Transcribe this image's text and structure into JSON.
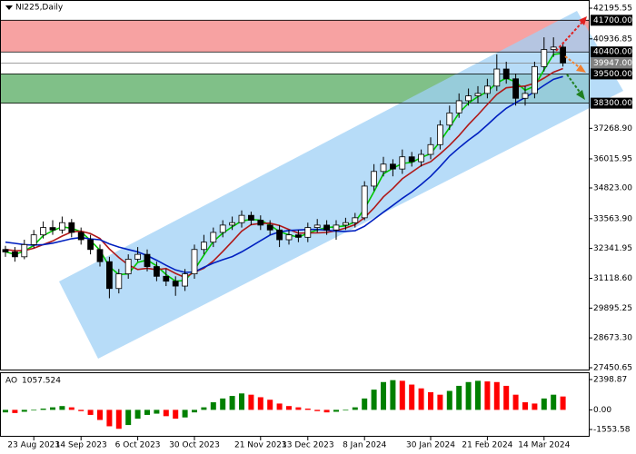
{
  "chart_data": {
    "type": "candlestick",
    "title": "NI225,Daily",
    "ohlc": [
      [
        32300,
        32450,
        32000,
        32200
      ],
      [
        32200,
        32400,
        31800,
        32000
      ],
      [
        32000,
        32700,
        31900,
        32500
      ],
      [
        32500,
        33100,
        32350,
        32900
      ],
      [
        32900,
        33450,
        32750,
        33200
      ],
      [
        33200,
        33500,
        32900,
        33100
      ],
      [
        33100,
        33650,
        32950,
        33400
      ],
      [
        33400,
        33550,
        32800,
        33000
      ],
      [
        33000,
        33200,
        32500,
        32700
      ],
      [
        32700,
        32900,
        32100,
        32300
      ],
      [
        32300,
        32500,
        31600,
        31800
      ],
      [
        31800,
        32000,
        30300,
        30700
      ],
      [
        30700,
        31500,
        30500,
        31300
      ],
      [
        31300,
        32100,
        31100,
        31900
      ],
      [
        31900,
        32400,
        31800,
        32100
      ],
      [
        32100,
        32300,
        31400,
        31600
      ],
      [
        31600,
        31800,
        31000,
        31200
      ],
      [
        31200,
        31500,
        30800,
        31000
      ],
      [
        31000,
        31200,
        30400,
        30800
      ],
      [
        30800,
        31500,
        30600,
        31300
      ],
      [
        31300,
        32500,
        31100,
        32300
      ],
      [
        32300,
        32900,
        32100,
        32600
      ],
      [
        32600,
        33200,
        32400,
        33000
      ],
      [
        33000,
        33500,
        32800,
        33300
      ],
      [
        33300,
        33650,
        33100,
        33400
      ],
      [
        33400,
        33900,
        33200,
        33700
      ],
      [
        33700,
        33850,
        33300,
        33500
      ],
      [
        33500,
        33700,
        33100,
        33300
      ],
      [
        33300,
        33500,
        32900,
        33100
      ],
      [
        33100,
        33300,
        32400,
        32700
      ],
      [
        32700,
        33100,
        32500,
        32900
      ],
      [
        32900,
        33100,
        32600,
        32800
      ],
      [
        32800,
        33400,
        32600,
        33200
      ],
      [
        33200,
        33550,
        33000,
        33300
      ],
      [
        33300,
        33500,
        32900,
        33100
      ],
      [
        33100,
        33500,
        32700,
        33300
      ],
      [
        33300,
        33600,
        33100,
        33400
      ],
      [
        33400,
        33800,
        33200,
        33600
      ],
      [
        33600,
        35100,
        33500,
        34900
      ],
      [
        34900,
        35800,
        34700,
        35500
      ],
      [
        35500,
        36100,
        35300,
        35800
      ],
      [
        35800,
        36000,
        35300,
        35600
      ],
      [
        35600,
        36400,
        35400,
        36100
      ],
      [
        36100,
        36300,
        35700,
        35900
      ],
      [
        35900,
        36400,
        35700,
        36200
      ],
      [
        36200,
        36900,
        36000,
        36600
      ],
      [
        36600,
        37600,
        36400,
        37400
      ],
      [
        37400,
        38200,
        37200,
        37900
      ],
      [
        37900,
        38700,
        37700,
        38400
      ],
      [
        38400,
        38900,
        38200,
        38600
      ],
      [
        38600,
        39000,
        38300,
        38700
      ],
      [
        38700,
        39300,
        38500,
        39000
      ],
      [
        39000,
        40300,
        38800,
        39700
      ],
      [
        39700,
        40000,
        39100,
        39300
      ],
      [
        39300,
        39500,
        38200,
        38500
      ],
      [
        38500,
        39000,
        38200,
        38700
      ],
      [
        38700,
        40000,
        38500,
        39800
      ],
      [
        39800,
        41000,
        39600,
        40500
      ],
      [
        40500,
        41000,
        40200,
        40600
      ],
      [
        40600,
        40800,
        39800,
        39947
      ]
    ],
    "up_color": "#ffffff",
    "down_color": "#000000",
    "series": [
      {
        "color": "#00c800",
        "values": [
          32200,
          32100,
          32230,
          32470,
          32870,
          33070,
          33230,
          33170,
          33030,
          32670,
          32270,
          31600,
          31270,
          31300,
          31770,
          31870,
          31630,
          31270,
          31000,
          31030,
          31470,
          32070,
          32630,
          32970,
          33230,
          33470,
          33530,
          33500,
          33300,
          33030,
          32900,
          32800,
          32970,
          33100,
          33200,
          33230,
          33270,
          33430,
          33970,
          34670,
          35400,
          35630,
          35830,
          35870,
          36070,
          36230,
          36730,
          37300,
          37900,
          38300,
          38570,
          38770,
          39130,
          39330,
          39170,
          38830,
          39000,
          39670,
          40300,
          40350
        ]
      },
      {
        "color": "#b01818",
        "values": [
          32300,
          32250,
          32250,
          32350,
          32500,
          32650,
          32850,
          33020,
          33050,
          32950,
          32750,
          32320,
          31970,
          31670,
          31480,
          31530,
          31470,
          31520,
          31320,
          31150,
          31370,
          31530,
          31830,
          32220,
          32630,
          33050,
          33320,
          33370,
          33380,
          33280,
          33120,
          32970,
          32980,
          32980,
          33000,
          33070,
          33180,
          33320,
          33600,
          34000,
          34460,
          34800,
          35200,
          35470,
          35740,
          35900,
          36220,
          36570,
          36970,
          37420,
          37820,
          38250,
          38660,
          38930,
          38970,
          39000,
          39120,
          39330,
          39570,
          39720
        ]
      },
      {
        "color": "#0020c0",
        "values": [
          32600,
          32550,
          32500,
          32480,
          32500,
          32560,
          32650,
          32740,
          32790,
          32730,
          32700,
          32530,
          32400,
          32300,
          32200,
          32050,
          31860,
          31650,
          31460,
          31360,
          31380,
          31570,
          31740,
          31880,
          32010,
          32200,
          32430,
          32660,
          32890,
          33020,
          33080,
          33100,
          33120,
          33120,
          33090,
          33050,
          33040,
          33070,
          33250,
          33540,
          33830,
          34110,
          34400,
          34660,
          34970,
          35300,
          35700,
          36130,
          36470,
          36780,
          37070,
          37410,
          37770,
          38090,
          38320,
          38530,
          38770,
          39030,
          39280,
          39390
        ]
      }
    ],
    "ylim": [
      27450.65,
      42195.55
    ],
    "yticks": [
      42195.55,
      40936.85,
      {
        "value": 37268.9,
        "label": "37268.90"
      },
      36015.95,
      {
        "value": 34823,
        "label": "34823.00"
      },
      {
        "value": 33563.9,
        "label": "33563.90"
      },
      32341.95,
      {
        "value": 31118.6,
        "label": "31118.60"
      },
      29895.25,
      {
        "value": 28673.3,
        "label": "28673.30"
      },
      27450.65
    ],
    "levels": [
      {
        "value": 41700,
        "label": "41700.00",
        "color": "#000000"
      },
      {
        "value": 40400,
        "label": "40400.00",
        "color": "#000000"
      },
      {
        "value": 39947,
        "label": "39947.00",
        "color": "#808080"
      },
      {
        "value": 39500,
        "label": "39500.00",
        "color": "#000000"
      },
      {
        "value": 38300,
        "label": "38300.00",
        "color": "#000000"
      }
    ],
    "zones": [
      {
        "from": 40400,
        "to": 41700,
        "color": "#f7a2a2"
      },
      {
        "from": 38300,
        "to": 39500,
        "color": "#80c088"
      }
    ],
    "xticks": [
      {
        "value": 3,
        "label": "23 Aug 2023"
      },
      {
        "value": 8,
        "label": "14 Sep 2023"
      },
      {
        "value": 14,
        "label": "6 Oct 2023"
      },
      {
        "value": 20,
        "label": "30 Oct 2023"
      },
      {
        "value": 27,
        "label": "21 Nov 2023"
      },
      {
        "value": 32,
        "label": "13 Dec 2023"
      },
      {
        "value": 38,
        "label": "8 Jan 2024"
      },
      {
        "value": 45,
        "label": "30 Jan 2024"
      },
      {
        "value": 51,
        "label": "21 Feb 2024"
      },
      {
        "value": 57,
        "label": "14 Mar 2024"
      }
    ],
    "ao": {
      "name": "AO",
      "values": [
        -200,
        -250,
        -150,
        -50,
        100,
        200,
        300,
        200,
        -100,
        -400,
        -800,
        -1300,
        -1500,
        -1200,
        -700,
        -400,
        -300,
        -500,
        -700,
        -600,
        -200,
        200,
        600,
        900,
        1100,
        1300,
        1200,
        1000,
        800,
        500,
        300,
        200,
        100,
        -100,
        -200,
        -150,
        -50,
        200,
        900,
        1600,
        2200,
        2350,
        2300,
        2000,
        1700,
        1400,
        1200,
        1500,
        1900,
        2200,
        2300,
        2250,
        2200,
        1900,
        1200,
        600,
        500,
        900,
        1200,
        1057.524
      ],
      "up_color": "#008000",
      "down_color": "#ff0000",
      "ylim": [
        -1553.58,
        2398.87
      ],
      "yticks": [
        2398.87,
        {
          "value": 0,
          "label": "0.00"
        },
        -1553.58
      ]
    }
  }
}
